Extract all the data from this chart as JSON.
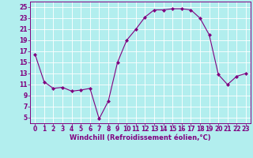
{
  "x": [
    0,
    1,
    2,
    3,
    4,
    5,
    6,
    7,
    8,
    9,
    10,
    11,
    12,
    13,
    14,
    15,
    16,
    17,
    18,
    19,
    20,
    21,
    22,
    23
  ],
  "y": [
    16.5,
    11.5,
    10.3,
    10.5,
    9.8,
    10.0,
    10.3,
    4.8,
    8.0,
    15.0,
    19.0,
    21.0,
    23.2,
    24.5,
    24.5,
    24.7,
    24.7,
    24.5,
    23.0,
    20.0,
    12.8,
    11.0,
    12.5,
    13.0
  ],
  "line_color": "#800080",
  "marker_color": "#800080",
  "bg_color": "#b2eeee",
  "grid_color": "#ffffff",
  "xlabel": "Windchill (Refroidissement éolien,°C)",
  "xlim": [
    -0.5,
    23.5
  ],
  "ylim": [
    4,
    26
  ],
  "yticks": [
    5,
    7,
    9,
    11,
    13,
    15,
    17,
    19,
    21,
    23,
    25
  ],
  "xticks": [
    0,
    1,
    2,
    3,
    4,
    5,
    6,
    7,
    8,
    9,
    10,
    11,
    12,
    13,
    14,
    15,
    16,
    17,
    18,
    19,
    20,
    21,
    22,
    23
  ],
  "tick_fontsize": 5.5,
  "xlabel_fontsize": 6.0
}
